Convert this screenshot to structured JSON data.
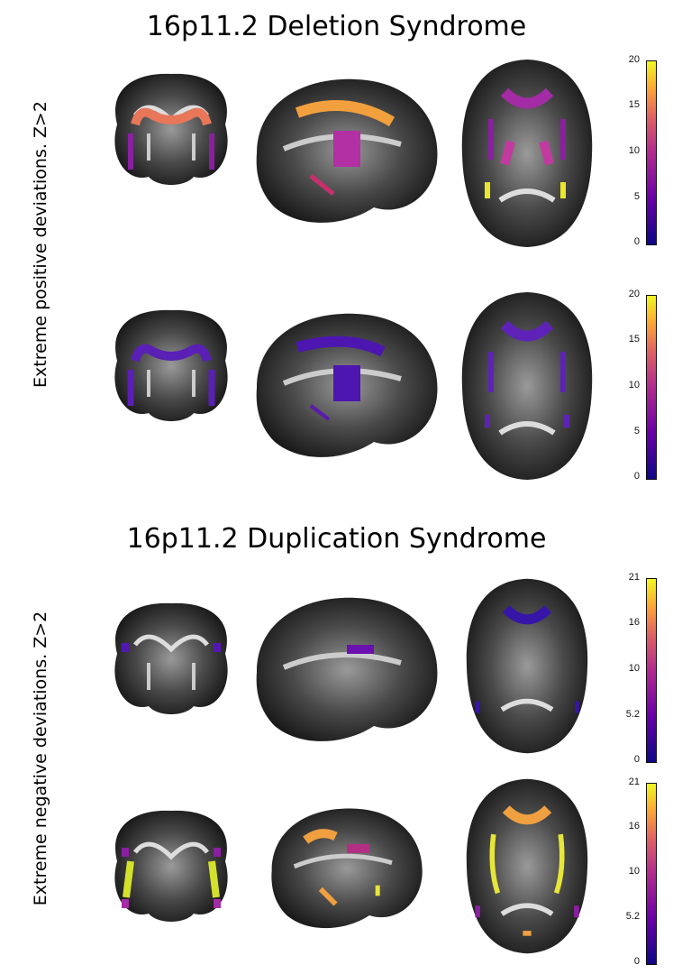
{
  "titles": {
    "deletion": "16p11.2 Deletion Syndrome",
    "duplication": "16p11.2 Duplication Syndrome"
  },
  "side_labels": {
    "positive": "Extreme positive deviations. Z>2",
    "negative": "Extreme negative deviations. Z>2"
  },
  "colorbars": {
    "deletion_row1": [
      "20",
      "15",
      "10",
      "5",
      "0"
    ],
    "deletion_row2": [
      "20",
      "15",
      "10",
      "5",
      "0"
    ],
    "duplication_row1": [
      "21",
      "16",
      "10",
      "5.2",
      "0"
    ],
    "duplication_row2": [
      "21",
      "16",
      "10",
      "5.2",
      "0"
    ]
  },
  "colormap": [
    "#0d0887",
    "#6a00a8",
    "#b12a90",
    "#e16462",
    "#fca636",
    "#f0f921"
  ],
  "views": [
    "coronal",
    "sagittal",
    "axial"
  ],
  "overlay_colors": {
    "del_row1": {
      "coronal": "#e8775a",
      "sagittal": "#f2a03d",
      "axial": "#a32ba5"
    },
    "del_row2": {
      "coronal": "#5a1fb5",
      "sagittal": "#4d16b0",
      "axial": "#5f22b8"
    },
    "dup_row1": {
      "coronal": "#5318b0",
      "sagittal": "#6a0fb0",
      "axial": "#3615a8"
    },
    "dup_row2": {
      "coronal": "#d4e12c",
      "sagittal": "#f0a040",
      "axial": "#e6e63a"
    }
  }
}
